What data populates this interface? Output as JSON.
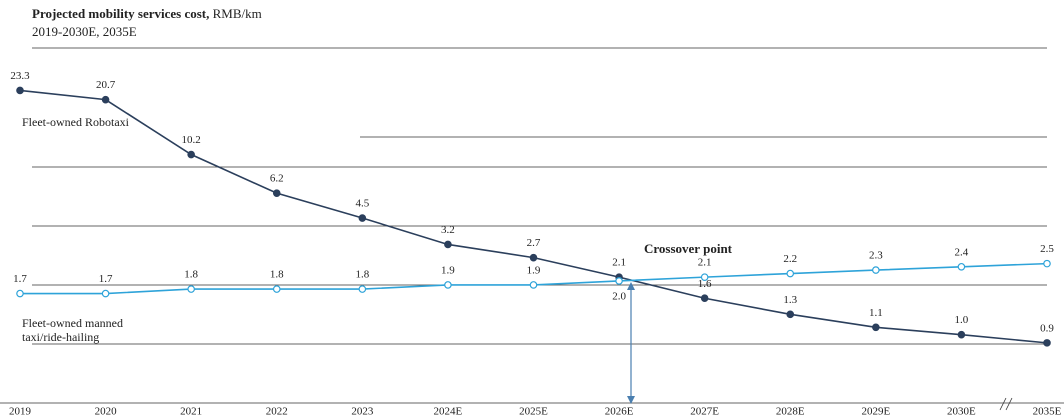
{
  "chart_data": {
    "type": "line",
    "title": "Projected mobility services cost,",
    "unit": "RMB/km",
    "subtitle": "2019-2030E, 2035E",
    "annotation": "Crossover point",
    "categories": [
      "2019",
      "2020",
      "2021",
      "2022",
      "2023",
      "2024E",
      "2025E",
      "2026E",
      "2027E",
      "2028E",
      "2029E",
      "2030E",
      "2035E"
    ],
    "series": [
      {
        "name": "Fleet-owned Robotaxi",
        "color": "#2b3f5c",
        "values": [
          23.3,
          20.7,
          10.2,
          6.2,
          4.5,
          3.2,
          2.7,
          2.1,
          1.6,
          1.3,
          1.1,
          1.0,
          0.9
        ],
        "value_labels": [
          "23.3",
          "20.7",
          "10.2",
          "6.2",
          "4.5",
          "3.2",
          "2.7",
          "2.1",
          "1.6",
          "1.3",
          "1.1",
          "1.0",
          "0.9"
        ]
      },
      {
        "name": "Fleet-owned manned taxi/ride-hailing",
        "color": "#2ea3d9",
        "values": [
          1.7,
          1.7,
          1.8,
          1.8,
          1.8,
          1.9,
          1.9,
          2.0,
          2.1,
          2.2,
          2.3,
          2.4,
          2.5
        ],
        "value_labels": [
          "1.7",
          "1.7",
          "1.8",
          "1.8",
          "1.8",
          "1.9",
          "1.9",
          "2.0",
          "2.1",
          "2.2",
          "2.3",
          "2.4",
          "2.5"
        ]
      }
    ],
    "log_scale": true,
    "ylim": [
      0.8,
      25
    ]
  }
}
